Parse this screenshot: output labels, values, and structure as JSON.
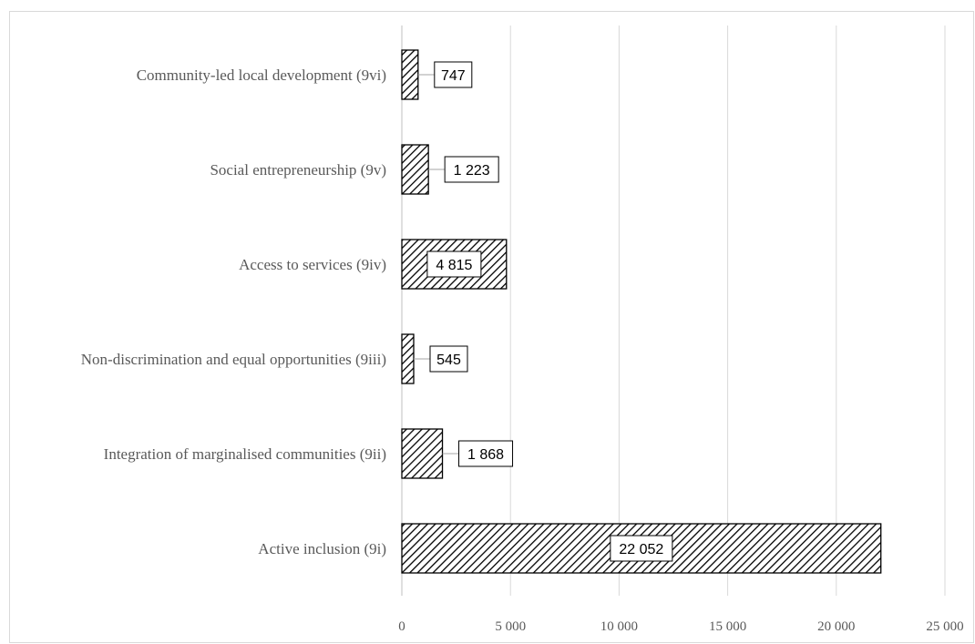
{
  "chart_data": {
    "type": "bar",
    "orientation": "horizontal",
    "categories": [
      "Active inclusion (9i)",
      "Integration of marginalised communities (9ii)",
      "Non-discrimination and equal opportunities (9iii)",
      "Access to services (9iv)",
      "Social entrepreneurship (9v)",
      "Community-led local development (9vi)"
    ],
    "values": [
      22052,
      1868,
      545,
      4815,
      1223,
      747
    ],
    "value_labels": [
      "22 052",
      "1 868",
      "545",
      "4 815",
      "1 223",
      "747"
    ],
    "xlim": [
      0,
      25000
    ],
    "x_ticks": [
      0,
      5000,
      10000,
      15000,
      20000,
      25000
    ],
    "x_tick_labels": [
      "0",
      "5 000",
      "10 000",
      "15 000",
      "20 000",
      "25 000"
    ],
    "title": "",
    "xlabel": "",
    "ylabel": "",
    "grid": "vertical",
    "legend": "none",
    "colors": {
      "bar_fill_pattern": "diagonal-hatch",
      "bar_stroke": "#000000",
      "grid": "#d9d9d9",
      "text": "#595959",
      "frame": "#d9d9d9"
    }
  }
}
